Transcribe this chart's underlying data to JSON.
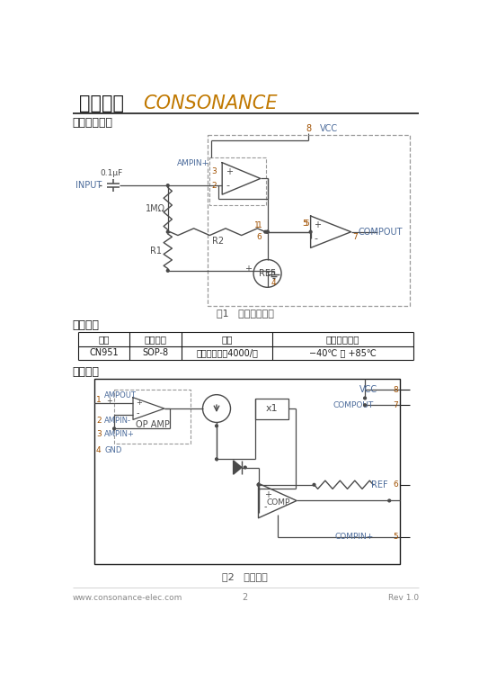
{
  "title_chinese": "如韵电子",
  "title_english": "CONSONANCE",
  "section1": "典型应用电路",
  "section2": "订购信息",
  "section3": "原理框图",
  "fig1_caption": "图1   典型应用电路",
  "fig2_caption": "图2   原理框图",
  "table_headers": [
    "型号",
    "封装形式",
    "包装",
    "工作温度范围"
  ],
  "table_row": [
    "CN951",
    "SOP-8",
    "编带，盘装，4000/盘",
    "−40℃ 到 +85℃"
  ],
  "footer_left": "www.consonance-elec.com",
  "footer_center": "2",
  "footer_right": "Rev 1.0",
  "bg_color": "#ffffff",
  "cc": "#4a4a4a",
  "dc": "#999999",
  "pc": "#a05000",
  "lc": "#4a6a9a",
  "title_en_color": "#c07800",
  "black": "#1a1a1a",
  "gray": "#888888"
}
